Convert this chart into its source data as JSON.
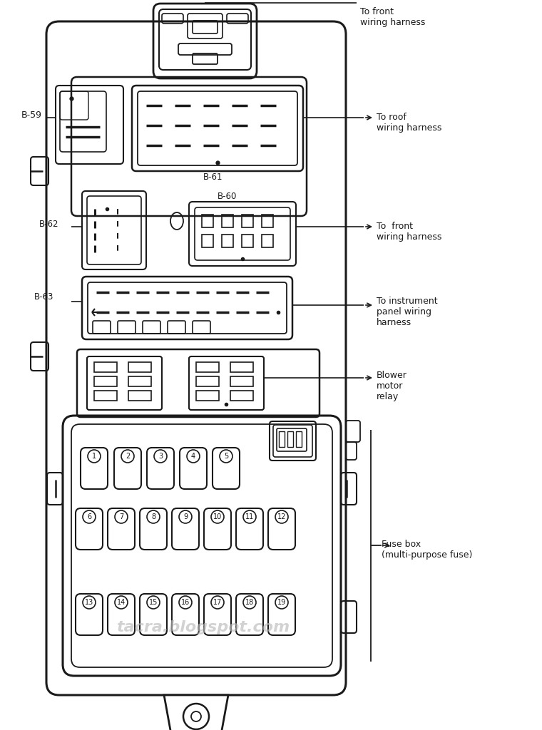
{
  "bg_color": "#ffffff",
  "lc": "#1a1a1a",
  "tc": "#1a1a1a",
  "watermark": "tacra.blogspot.com",
  "labels": {
    "top_right_1": "To front\nwiring harness",
    "b61_label": "To roof\nwiring harness",
    "b60_label": "To  front\nwiring harness",
    "b63_label": "To instrument\npanel wiring\nharness",
    "relay_label": "Blower\nmotor\nrelay",
    "fuse_label": "Fuse box\n(multi-purpose fuse)",
    "b59": "B-59",
    "b60": "B-60",
    "b61": "B-61",
    "b62": "B-62",
    "b63": "B-63"
  },
  "fuse_row1": [
    1,
    2,
    3,
    4,
    5
  ],
  "fuse_row2": [
    6,
    7,
    8,
    9,
    10,
    11,
    12
  ],
  "fuse_row3": [
    13,
    14,
    15,
    16,
    17,
    18,
    19
  ]
}
